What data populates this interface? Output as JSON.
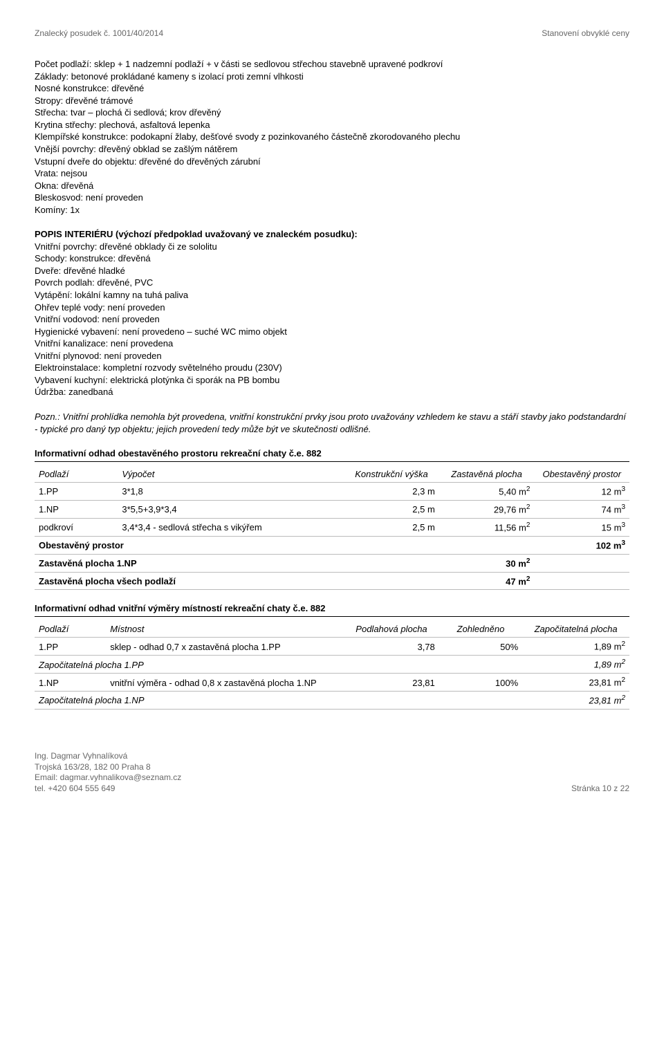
{
  "header": {
    "left": "Znalecký posudek č. 1001/40/2014",
    "right": "Stanovení obvyklé ceny"
  },
  "block1": [
    "Počet podlaží: sklep + 1 nadzemní podlaží + v části se sedlovou střechou stavebně upravené podkroví",
    "Základy: betonové prokládané kameny s izolací proti zemní vlhkosti",
    "Nosné konstrukce: dřevěné",
    "Stropy: dřevěné trámové",
    "Střecha: tvar – plochá či sedlová; krov dřevěný",
    "Krytina střechy: plechová, asfaltová lepenka",
    "Klempířské konstrukce: podokapní žlaby, dešťové svody z pozinkovaného částečně zkorodovaného plechu",
    "Vnější povrchy: dřevěný obklad se zašlým nátěrem",
    "Vstupní dveře do objektu: dřevěné do dřevěných zárubní",
    "Vrata: nejsou",
    "Okna: dřevěná",
    "Bleskosvod: není proveden",
    "Komíny: 1x"
  ],
  "block2_title": "POPIS INTERIÉRU (výchozí předpoklad uvažovaný ve znaleckém posudku):",
  "block2": [
    "Vnitřní povrchy: dřevěné obklady či ze sololitu",
    "Schody: konstrukce: dřevěná",
    "Dveře: dřevěné hladké",
    "Povrch podlah: dřevěné, PVC",
    "Vytápění: lokální kamny na tuhá paliva",
    "Ohřev teplé vody: není proveden",
    "Vnitřní vodovod: není proveden",
    "Hygienické vybavení: není provedeno – suché WC mimo objekt",
    "Vnitřní kanalizace: není provedena",
    "Vnitřní plynovod: není proveden",
    "Elektroinstalace: kompletní rozvody světelného proudu (230V)",
    "Vybavení kuchyní: elektrická plotýnka či sporák na PB bombu",
    "Údržba: zanedbaná"
  ],
  "note": "Pozn.: Vnitřní prohlídka nemohla být provedena, vnitřní konstrukční prvky jsou proto uvažovány vzhledem ke stavu a stáří stavby jako podstandardní - typické pro daný typ objektu; jejich provedení tedy může být ve skutečnosti odlišné.",
  "table1": {
    "title": "Informativní odhad obestavěného prostoru rekreační chaty č.e. 882",
    "cols": [
      "Podlaží",
      "Výpočet",
      "Konstrukční výška",
      "Zastavěná plocha",
      "Obestavěný prostor"
    ],
    "rows": [
      [
        "1.PP",
        "3*1,8",
        "2,3  m",
        "5,40  m²",
        "12  m³"
      ],
      [
        "1.NP",
        "3*5,5+3,9*3,4",
        "2,5  m",
        "29,76  m²",
        "74  m³"
      ],
      [
        "podkroví",
        "3,4*3,4 - sedlová střecha s vikýřem",
        "2,5  m",
        "11,56  m²",
        "15  m³"
      ]
    ],
    "summary": [
      {
        "label": "Obestavěný prostor",
        "value": "102  m³",
        "bold": true,
        "colspan_value": 1,
        "colspan_label": 4
      },
      {
        "label": "Zastavěná plocha 1.NP",
        "value": "30  m²",
        "bold": true,
        "colspan_label": 3,
        "colspan_value": 2
      },
      {
        "label": "Zastavěná plocha všech podlaží",
        "value": "47  m²",
        "bold": true,
        "colspan_label": 3,
        "colspan_value": 2
      }
    ]
  },
  "table2": {
    "title": "Informativní odhad vnitřní výměry místností rekreační chaty č.e. 882",
    "cols": [
      "Podlaží",
      "Místnost",
      "Podlahová plocha",
      "Zohledněno",
      "Započitatelná plocha"
    ],
    "rows": [
      [
        "1.PP",
        "sklep - odhad 0,7 x zastavěná plocha 1.PP",
        "3,78",
        "50%",
        "1,89  m²"
      ]
    ],
    "intermediate": {
      "label": "Započitatelná plocha 1.PP",
      "value": "1,89  m²"
    },
    "rows2": [
      [
        "1.NP",
        "vnitřní výměra - odhad 0,8 x zastavěná plocha 1.NP",
        "23,81",
        "100%",
        "23,81  m²"
      ]
    ],
    "intermediate2": {
      "label": "Započitatelná plocha 1.NP",
      "value": "23,81  m²"
    }
  },
  "footer": {
    "name": "Ing. Dagmar Vyhnalíková",
    "addr": "Trojská 163/28, 182 00 Praha 8",
    "email": "Email: dagmar.vyhnalikova@seznam.cz",
    "tel": "tel. +420 604 555 649",
    "page": "Stránka 10 z 22"
  }
}
